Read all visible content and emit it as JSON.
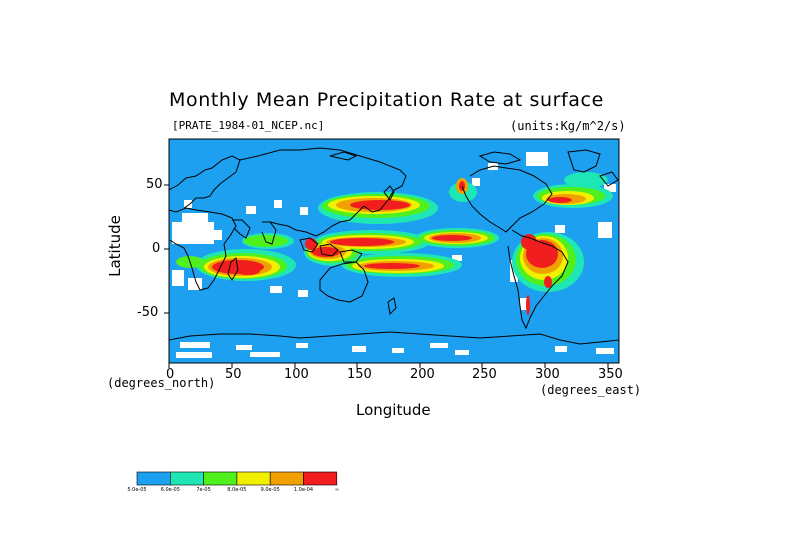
{
  "title": "Monthly Mean Precipitation Rate at surface",
  "subtitle": "[PRATE_1984-01_NCEP.nc]",
  "units": "(units:Kg/m^2/s)",
  "axes": {
    "ylabel": "Latitude",
    "xlabel": "Longitude",
    "x_unit": "(degrees_east)",
    "y_unit": "(degrees_north)",
    "x_ticks": [
      "0",
      "50",
      "100",
      "150",
      "200",
      "250",
      "300",
      "350"
    ],
    "y_ticks": [
      "50",
      "0",
      "-50"
    ],
    "x_range": [
      0,
      360
    ],
    "y_range": [
      -90,
      90
    ]
  },
  "colors": {
    "ocean_base": "#1ea0f0",
    "missing": "#ffffff",
    "coastline": "#000000"
  },
  "colorbar": {
    "levels": [
      {
        "label": "5.0e-05",
        "color": "#1ea0f0"
      },
      {
        "label": "6.0e-05",
        "color": "#1ee6b4"
      },
      {
        "label": "7e-05",
        "color": "#50f01e"
      },
      {
        "label": "8.0e-05",
        "color": "#f0f000"
      },
      {
        "label": "9.0e-05",
        "color": "#f0a000"
      },
      {
        "label": "1.0e-04",
        "color": "#f01e1e"
      }
    ],
    "end_label": "∞"
  }
}
